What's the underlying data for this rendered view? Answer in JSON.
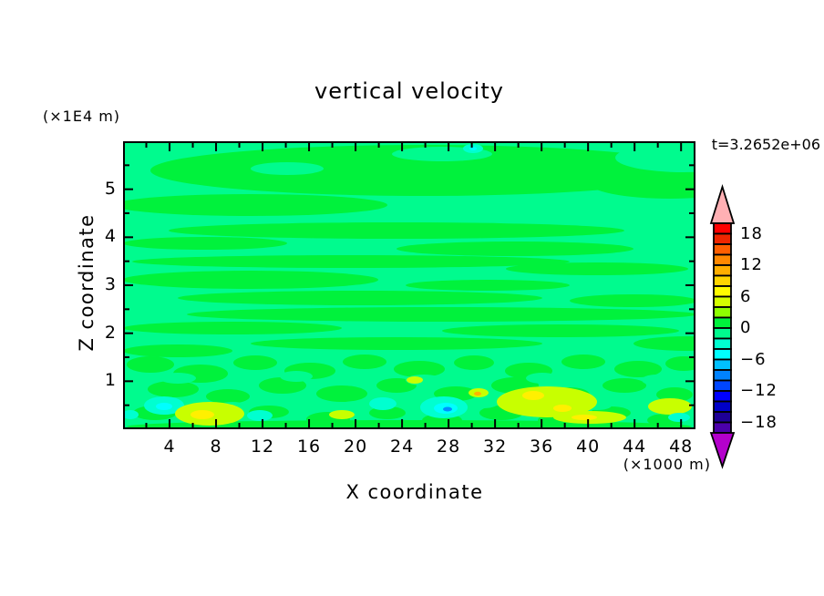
{
  "title": "vertical velocity",
  "time_label": "t=3.2652e+06",
  "y_axis": {
    "title": "Z coordinate",
    "unit": "(×1E4 m)",
    "ticks": [
      "1",
      "2",
      "3",
      "4",
      "5"
    ]
  },
  "x_axis": {
    "title": "X coordinate",
    "unit": "(×1000 m)",
    "ticks": [
      "4",
      "8",
      "12",
      "16",
      "20",
      "24",
      "28",
      "32",
      "36",
      "40",
      "44",
      "48"
    ]
  },
  "colorbar": {
    "tick_labels": [
      "18",
      "12",
      "6",
      "0",
      "−6",
      "−12",
      "−18"
    ],
    "top_arrow_color": "#ffb0b4",
    "bottom_arrow_color": "#b400cc",
    "segment_colors": [
      "#ff0000",
      "#ef2600",
      "#ff5e00",
      "#ff8800",
      "#ffae00",
      "#ffd500",
      "#fffc00",
      "#d4ff00",
      "#8eff00",
      "#00f23c",
      "#00fb8e",
      "#00ffd0",
      "#00ffff",
      "#00c0ff",
      "#0082ff",
      "#0046ff",
      "#0000ff",
      "#0000c8",
      "#1e0096",
      "#4b00aa"
    ]
  },
  "field": {
    "background": "#00fb8e",
    "palette": {
      "bg": "#00fb8e",
      "pos": "#00f23c",
      "aqua": "#00ffd0",
      "cyan": "#00ffff",
      "blue": "#0090ff",
      "yg": "#c8ff00",
      "yel": "#fff000",
      "org": "#ffb400"
    },
    "blobs": [
      [
        330,
        32,
        300,
        28,
        "pos"
      ],
      [
        600,
        45,
        90,
        18,
        "pos"
      ],
      [
        140,
        70,
        150,
        12,
        "pos"
      ],
      [
        615,
        18,
        75,
        16,
        "bg"
      ],
      [
        350,
        14,
        55,
        8,
        "bg"
      ],
      [
        180,
        30,
        40,
        7,
        "bg"
      ],
      [
        384,
        8,
        11,
        5,
        "aqua"
      ],
      [
        384,
        8,
        4,
        2,
        "cyan"
      ],
      [
        300,
        98,
        250,
        9,
        "pos"
      ],
      [
        90,
        112,
        90,
        7,
        "pos"
      ],
      [
        430,
        118,
        130,
        8,
        "pos"
      ],
      [
        250,
        132,
        240,
        7,
        "pos"
      ],
      [
        520,
        140,
        100,
        7,
        "pos"
      ],
      [
        140,
        152,
        140,
        10,
        "pos"
      ],
      [
        400,
        158,
        90,
        6,
        "pos"
      ],
      [
        260,
        172,
        200,
        8,
        "pos"
      ],
      [
        560,
        175,
        70,
        7,
        "pos"
      ],
      [
        350,
        190,
        280,
        8,
        "pos"
      ],
      [
        120,
        205,
        120,
        7,
        "pos"
      ],
      [
        480,
        208,
        130,
        7,
        "pos"
      ],
      [
        300,
        222,
        160,
        7,
        "pos"
      ],
      [
        620,
        222,
        60,
        8,
        "pos"
      ],
      [
        60,
        230,
        60,
        7,
        "pos"
      ],
      [
        30,
        245,
        26,
        9,
        "pos"
      ],
      [
        85,
        255,
        30,
        10,
        "pos"
      ],
      [
        145,
        243,
        24,
        8,
        "pos"
      ],
      [
        205,
        252,
        28,
        9,
        "pos"
      ],
      [
        265,
        242,
        24,
        8,
        "pos"
      ],
      [
        325,
        250,
        28,
        9,
        "pos"
      ],
      [
        385,
        243,
        22,
        8,
        "pos"
      ],
      [
        445,
        252,
        26,
        9,
        "pos"
      ],
      [
        505,
        242,
        24,
        8,
        "pos"
      ],
      [
        565,
        250,
        26,
        9,
        "pos"
      ],
      [
        615,
        244,
        20,
        8,
        "pos"
      ],
      [
        55,
        272,
        28,
        9,
        "pos"
      ],
      [
        115,
        280,
        24,
        8,
        "pos"
      ],
      [
        175,
        268,
        26,
        9,
        "pos"
      ],
      [
        240,
        277,
        28,
        9,
        "pos"
      ],
      [
        300,
        268,
        22,
        8,
        "pos"
      ],
      [
        365,
        277,
        24,
        8,
        "pos"
      ],
      [
        430,
        268,
        26,
        9,
        "pos"
      ],
      [
        490,
        278,
        22,
        8,
        "pos"
      ],
      [
        550,
        268,
        24,
        8,
        "pos"
      ],
      [
        605,
        278,
        20,
        8,
        "pos"
      ],
      [
        35,
        298,
        24,
        8,
        "pos"
      ],
      [
        95,
        305,
        26,
        8,
        "pos"
      ],
      [
        160,
        297,
        22,
        7,
        "pos"
      ],
      [
        225,
        305,
        24,
        8,
        "pos"
      ],
      [
        290,
        298,
        20,
        7,
        "pos"
      ],
      [
        350,
        306,
        22,
        7,
        "pos"
      ],
      [
        415,
        298,
        24,
        8,
        "pos"
      ],
      [
        475,
        306,
        20,
        7,
        "pos"
      ],
      [
        535,
        298,
        22,
        7,
        "pos"
      ],
      [
        595,
        306,
        20,
        7,
        "pos"
      ],
      [
        314,
        313,
        310,
        7,
        "pos"
      ],
      [
        60,
        260,
        20,
        6,
        "bg"
      ],
      [
        190,
        258,
        18,
        6,
        "bg"
      ],
      [
        330,
        262,
        20,
        6,
        "bg"
      ],
      [
        460,
        260,
        18,
        6,
        "bg"
      ],
      [
        585,
        262,
        16,
        6,
        "bg"
      ],
      [
        120,
        292,
        18,
        6,
        "bg"
      ],
      [
        255,
        290,
        16,
        5,
        "bg"
      ],
      [
        395,
        288,
        16,
        5,
        "bg"
      ],
      [
        520,
        290,
        16,
        5,
        "bg"
      ],
      [
        45,
        290,
        22,
        10,
        "aqua"
      ],
      [
        45,
        291,
        9,
        4,
        "cyan"
      ],
      [
        95,
        299,
        38,
        13,
        "yg"
      ],
      [
        87,
        300,
        13,
        5,
        "yel"
      ],
      [
        150,
        301,
        14,
        6,
        "aqua"
      ],
      [
        285,
        288,
        15,
        7,
        "aqua"
      ],
      [
        352,
        292,
        26,
        12,
        "aqua"
      ],
      [
        354,
        293,
        13,
        6,
        "cyan"
      ],
      [
        356,
        294,
        5,
        2.5,
        "blue"
      ],
      [
        320,
        262,
        9,
        4,
        "yg"
      ],
      [
        390,
        276,
        11,
        5,
        "yg"
      ],
      [
        389,
        277,
        4,
        2.2,
        "org"
      ],
      [
        465,
        286,
        55,
        17,
        "yg"
      ],
      [
        450,
        279,
        12,
        5,
        "yel"
      ],
      [
        482,
        293,
        10,
        4,
        "yel"
      ],
      [
        512,
        303,
        40,
        7,
        "yg"
      ],
      [
        506,
        303,
        14,
        3,
        "yel"
      ],
      [
        600,
        291,
        24,
        9,
        "yg"
      ],
      [
        610,
        303,
        12,
        5,
        "aqua"
      ],
      [
        8,
        300,
        9,
        5,
        "aqua"
      ],
      [
        240,
        300,
        14,
        5,
        "yg"
      ]
    ]
  },
  "chart_data": {
    "type": "heatmap",
    "title": "vertical velocity",
    "xlabel": "X coordinate (×1000 m)",
    "ylabel": "Z coordinate (×1E4 m)",
    "x_ticks": [
      4,
      8,
      12,
      16,
      20,
      24,
      28,
      32,
      36,
      40,
      44,
      48
    ],
    "y_ticks": [
      1,
      2,
      3,
      4,
      5
    ],
    "x_range": [
      0,
      49.3
    ],
    "y_range": [
      0,
      6
    ],
    "time_annotation": "t=3.2652e+06",
    "colorbar_ticks": [
      18,
      12,
      6,
      0,
      -6,
      -12,
      -18
    ],
    "contour_interval": 2,
    "value_range": [
      -20,
      20
    ],
    "legend_position": "right",
    "grid": false,
    "summary": "Filled contour field of vertical velocity, nearly everywhere between -2 and +2 (two green shades in elongated horizontal streaks). Stronger updraft cells of +4 to +8 (yellow-green with yellow cores, one small +10 orange core) and downdraft cells of -4 to -10 (aqua and cyan patches with one small blue core) are confined below Z ≈ 1×1E4 m near the lower boundary."
  }
}
